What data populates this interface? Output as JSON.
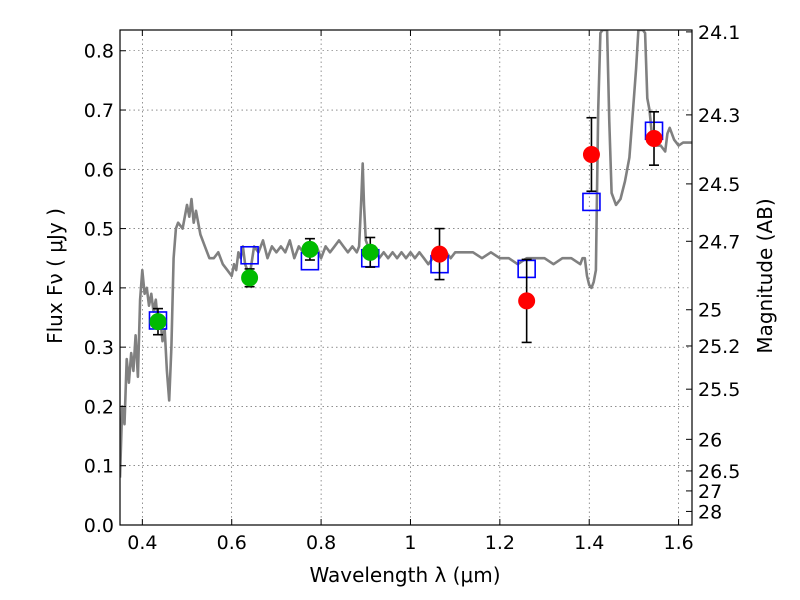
{
  "chart_data": {
    "type": "scatter",
    "title": "",
    "xlabel": "Wavelength  λ (μm)",
    "ylabel": "Flux  Fν  ( μJy )",
    "y2label": "Magnitude (AB)",
    "xlim": [
      0.35,
      1.63
    ],
    "ylim": [
      0.0,
      0.835
    ],
    "grid": true,
    "legend": "none",
    "x_ticks": [
      0.4,
      0.6,
      0.8,
      1.0,
      1.2,
      1.4,
      1.6
    ],
    "x_tick_labels": [
      "0.4",
      "0.6",
      "0.8",
      "1",
      "1.2",
      "1.4",
      "1.6"
    ],
    "y_ticks": [
      0.0,
      0.1,
      0.2,
      0.3,
      0.4,
      0.5,
      0.6,
      0.7,
      0.8
    ],
    "y_tick_labels": [
      "0.0",
      "0.1",
      "0.2",
      "0.3",
      "0.4",
      "0.5",
      "0.6",
      "0.7",
      "0.8"
    ],
    "magnitude_ticks": [
      {
        "label": "24.1",
        "flux": 0.8318
      },
      {
        "label": "24.3",
        "flux": 0.6918
      },
      {
        "label": "24.5",
        "flux": 0.5754
      },
      {
        "label": "24.7",
        "flux": 0.4786
      },
      {
        "label": "25",
        "flux": 0.3631
      },
      {
        "label": "25.2",
        "flux": 0.302
      },
      {
        "label": "25.5",
        "flux": 0.2291
      },
      {
        "label": "26",
        "flux": 0.1445
      },
      {
        "label": "26.5",
        "flux": 0.0912
      },
      {
        "label": "27",
        "flux": 0.0575
      },
      {
        "label": "28",
        "flux": 0.0229
      }
    ],
    "series": [
      {
        "kind": "line",
        "color": "#808080",
        "points": [
          [
            0.35,
            0.08
          ],
          [
            0.355,
            0.2
          ],
          [
            0.36,
            0.17
          ],
          [
            0.365,
            0.28
          ],
          [
            0.37,
            0.24
          ],
          [
            0.375,
            0.29
          ],
          [
            0.38,
            0.26
          ],
          [
            0.385,
            0.32
          ],
          [
            0.39,
            0.25
          ],
          [
            0.395,
            0.38
          ],
          [
            0.4,
            0.43
          ],
          [
            0.405,
            0.39
          ],
          [
            0.41,
            0.4
          ],
          [
            0.415,
            0.37
          ],
          [
            0.42,
            0.39
          ],
          [
            0.425,
            0.36
          ],
          [
            0.43,
            0.38
          ],
          [
            0.435,
            0.34
          ],
          [
            0.44,
            0.35
          ],
          [
            0.445,
            0.31
          ],
          [
            0.45,
            0.33
          ],
          [
            0.455,
            0.26
          ],
          [
            0.46,
            0.21
          ],
          [
            0.465,
            0.3
          ],
          [
            0.47,
            0.45
          ],
          [
            0.475,
            0.5
          ],
          [
            0.48,
            0.51
          ],
          [
            0.49,
            0.5
          ],
          [
            0.5,
            0.54
          ],
          [
            0.505,
            0.52
          ],
          [
            0.51,
            0.55
          ],
          [
            0.515,
            0.51
          ],
          [
            0.52,
            0.53
          ],
          [
            0.53,
            0.49
          ],
          [
            0.54,
            0.47
          ],
          [
            0.55,
            0.45
          ],
          [
            0.56,
            0.45
          ],
          [
            0.57,
            0.46
          ],
          [
            0.58,
            0.44
          ],
          [
            0.59,
            0.43
          ],
          [
            0.6,
            0.42
          ],
          [
            0.605,
            0.44
          ],
          [
            0.61,
            0.43
          ],
          [
            0.615,
            0.46
          ],
          [
            0.62,
            0.45
          ],
          [
            0.625,
            0.47
          ],
          [
            0.63,
            0.44
          ],
          [
            0.64,
            0.42
          ],
          [
            0.65,
            0.47
          ],
          [
            0.66,
            0.46
          ],
          [
            0.67,
            0.48
          ],
          [
            0.68,
            0.45
          ],
          [
            0.69,
            0.47
          ],
          [
            0.7,
            0.46
          ],
          [
            0.71,
            0.47
          ],
          [
            0.72,
            0.46
          ],
          [
            0.73,
            0.48
          ],
          [
            0.74,
            0.45
          ],
          [
            0.75,
            0.47
          ],
          [
            0.76,
            0.46
          ],
          [
            0.77,
            0.47
          ],
          [
            0.78,
            0.46
          ],
          [
            0.79,
            0.47
          ],
          [
            0.8,
            0.45
          ],
          [
            0.81,
            0.47
          ],
          [
            0.82,
            0.46
          ],
          [
            0.83,
            0.47
          ],
          [
            0.84,
            0.48
          ],
          [
            0.85,
            0.47
          ],
          [
            0.86,
            0.46
          ],
          [
            0.87,
            0.47
          ],
          [
            0.88,
            0.46
          ],
          [
            0.885,
            0.47
          ],
          [
            0.89,
            0.55
          ],
          [
            0.893,
            0.61
          ],
          [
            0.896,
            0.54
          ],
          [
            0.9,
            0.48
          ],
          [
            0.91,
            0.46
          ],
          [
            0.92,
            0.47
          ],
          [
            0.93,
            0.45
          ],
          [
            0.94,
            0.46
          ],
          [
            0.95,
            0.45
          ],
          [
            0.96,
            0.46
          ],
          [
            0.97,
            0.45
          ],
          [
            0.98,
            0.46
          ],
          [
            0.99,
            0.45
          ],
          [
            1.0,
            0.46
          ],
          [
            1.01,
            0.45
          ],
          [
            1.02,
            0.46
          ],
          [
            1.03,
            0.45
          ],
          [
            1.04,
            0.44
          ],
          [
            1.05,
            0.45
          ],
          [
            1.06,
            0.45
          ],
          [
            1.07,
            0.46
          ],
          [
            1.08,
            0.46
          ],
          [
            1.09,
            0.45
          ],
          [
            1.1,
            0.46
          ],
          [
            1.12,
            0.46
          ],
          [
            1.14,
            0.46
          ],
          [
            1.16,
            0.45
          ],
          [
            1.18,
            0.46
          ],
          [
            1.2,
            0.45
          ],
          [
            1.22,
            0.45
          ],
          [
            1.24,
            0.44
          ],
          [
            1.26,
            0.45
          ],
          [
            1.28,
            0.45
          ],
          [
            1.3,
            0.45
          ],
          [
            1.32,
            0.44
          ],
          [
            1.34,
            0.45
          ],
          [
            1.36,
            0.45
          ],
          [
            1.38,
            0.44
          ],
          [
            1.385,
            0.45
          ],
          [
            1.39,
            0.45
          ],
          [
            1.395,
            0.42
          ],
          [
            1.4,
            0.405
          ],
          [
            1.405,
            0.4
          ],
          [
            1.41,
            0.41
          ],
          [
            1.415,
            0.43
          ],
          [
            1.42,
            0.7
          ],
          [
            1.425,
            0.83
          ],
          [
            1.43,
            0.835
          ],
          [
            1.44,
            0.835
          ],
          [
            1.445,
            0.68
          ],
          [
            1.45,
            0.56
          ],
          [
            1.46,
            0.54
          ],
          [
            1.47,
            0.55
          ],
          [
            1.48,
            0.58
          ],
          [
            1.49,
            0.62
          ],
          [
            1.5,
            0.72
          ],
          [
            1.505,
            0.77
          ],
          [
            1.51,
            0.835
          ],
          [
            1.52,
            0.835
          ],
          [
            1.525,
            0.83
          ],
          [
            1.53,
            0.72
          ],
          [
            1.535,
            0.7
          ],
          [
            1.54,
            0.66
          ],
          [
            1.55,
            0.64
          ],
          [
            1.56,
            0.64
          ],
          [
            1.57,
            0.63
          ],
          [
            1.575,
            0.66
          ],
          [
            1.58,
            0.67
          ],
          [
            1.59,
            0.65
          ],
          [
            1.6,
            0.64
          ],
          [
            1.61,
            0.645
          ],
          [
            1.62,
            0.645
          ],
          [
            1.63,
            0.645
          ]
        ]
      },
      {
        "kind": "open-square",
        "color": "#0000ff",
        "points": [
          [
            0.435,
            0.345
          ],
          [
            0.64,
            0.455
          ],
          [
            0.775,
            0.445
          ],
          [
            0.91,
            0.45
          ],
          [
            1.065,
            0.44
          ],
          [
            1.26,
            0.432
          ],
          [
            1.405,
            0.545
          ],
          [
            1.545,
            0.665
          ]
        ]
      },
      {
        "kind": "filled-circle",
        "color": "#00bb00",
        "points": [
          {
            "x": 0.435,
            "y": 0.343,
            "err": 0.022
          },
          {
            "x": 0.64,
            "y": 0.417,
            "err": 0.015
          },
          {
            "x": 0.775,
            "y": 0.465,
            "err": 0.018
          },
          {
            "x": 0.91,
            "y": 0.46,
            "err": 0.025
          }
        ]
      },
      {
        "kind": "filled-circle",
        "color": "#ff0000",
        "points": [
          {
            "x": 1.065,
            "y": 0.457,
            "err": 0.043
          },
          {
            "x": 1.26,
            "y": 0.378,
            "err": 0.07
          },
          {
            "x": 1.405,
            "y": 0.625,
            "err": 0.062
          },
          {
            "x": 1.545,
            "y": 0.652,
            "err": 0.045
          }
        ]
      }
    ]
  }
}
